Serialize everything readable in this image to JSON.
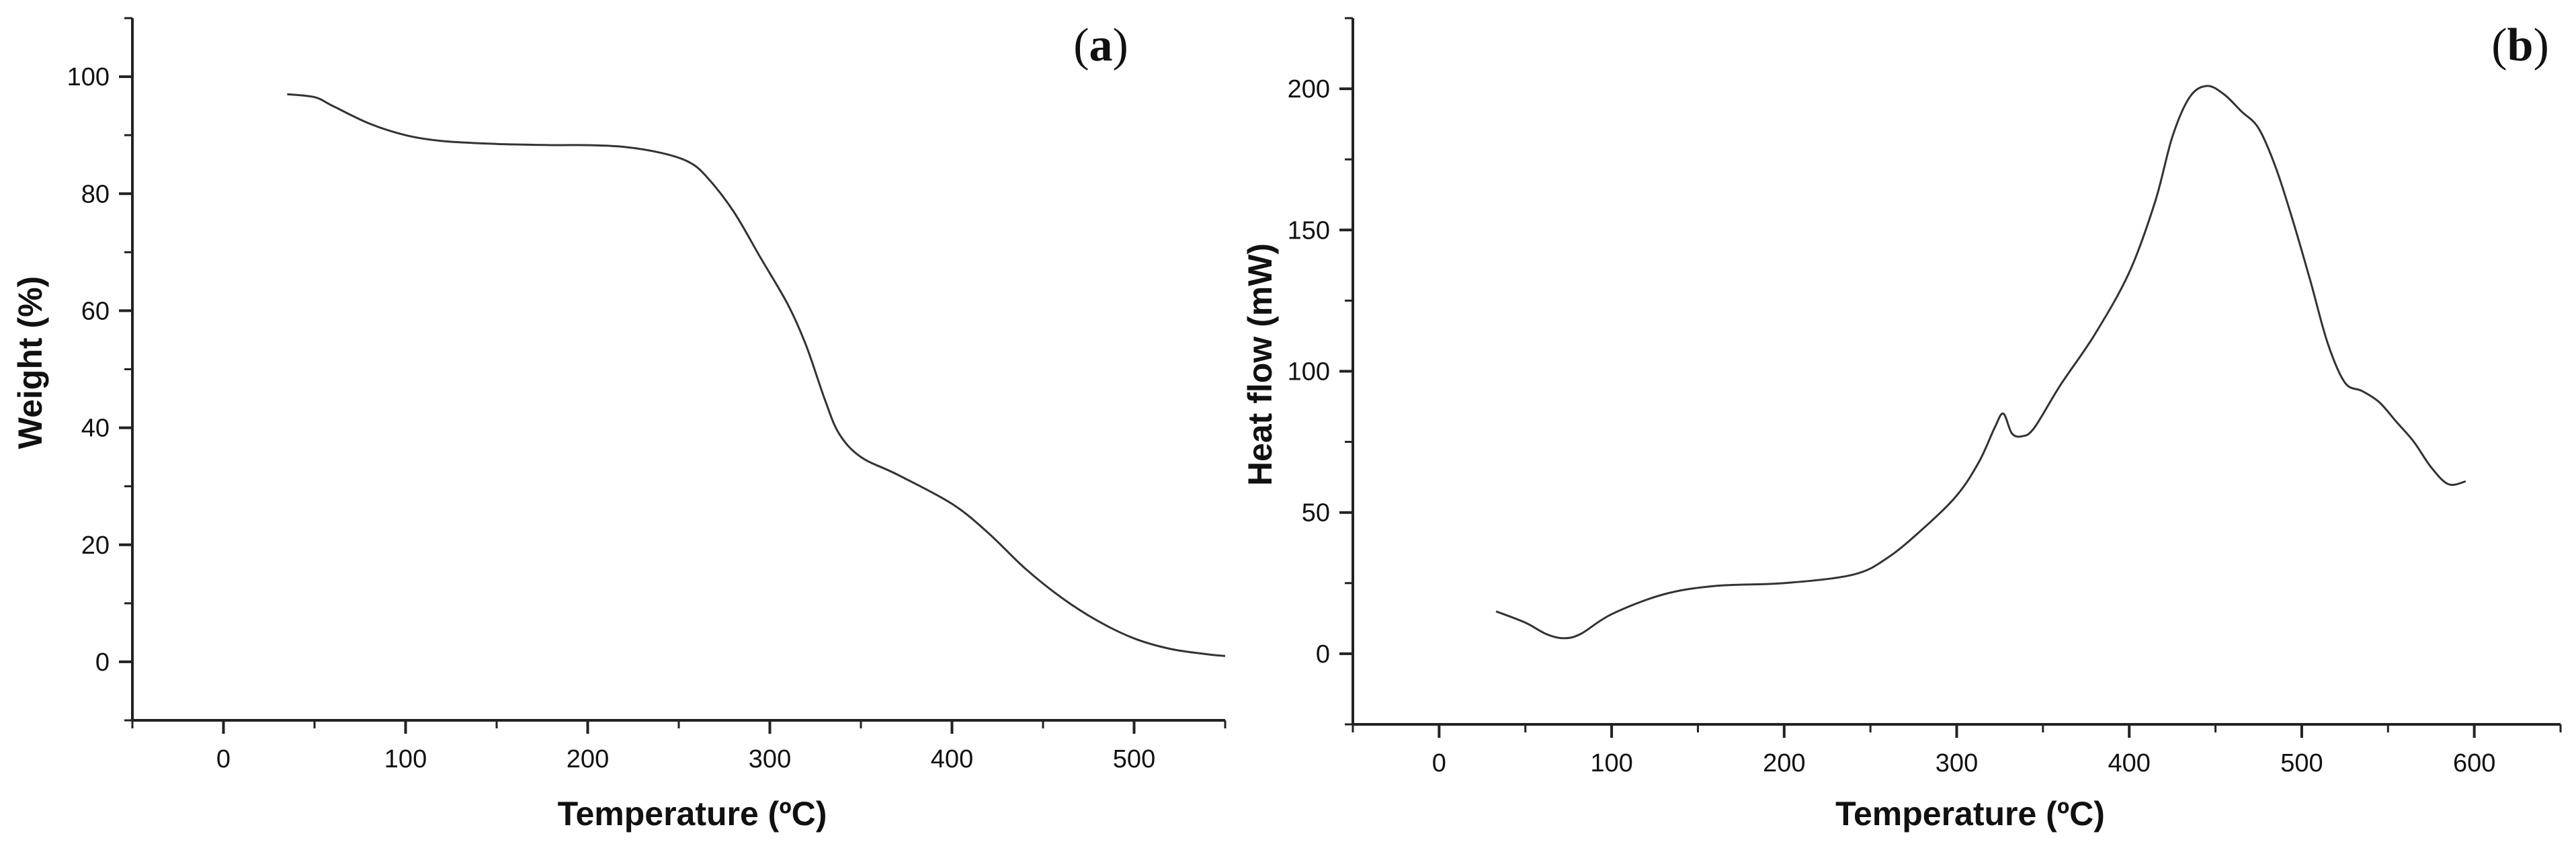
{
  "chart_data": [
    {
      "id": "a",
      "type": "line",
      "panel_label": "a",
      "xlabel": "Temperature (ºC)",
      "ylabel": "Weight (%)",
      "xlim": [
        -50,
        550
      ],
      "ylim": [
        -10,
        110
      ],
      "xticks": [
        0,
        100,
        200,
        300,
        400,
        500
      ],
      "yticks": [
        0,
        20,
        40,
        60,
        80,
        100
      ],
      "series": [
        {
          "name": "Weight",
          "x": [
            35,
            50,
            60,
            80,
            100,
            120,
            150,
            180,
            200,
            220,
            240,
            255,
            265,
            280,
            295,
            310,
            320,
            330,
            338,
            350,
            370,
            400,
            420,
            440,
            460,
            480,
            500,
            520,
            540,
            550
          ],
          "y": [
            97,
            96.5,
            95,
            92,
            90,
            89,
            88.5,
            88.3,
            88.3,
            88,
            87,
            85.5,
            83,
            77,
            69,
            61,
            54,
            45,
            39,
            35,
            32,
            27,
            22,
            16,
            11,
            7,
            4,
            2.2,
            1.3,
            1
          ]
        }
      ]
    },
    {
      "id": "b",
      "type": "line",
      "panel_label": "b",
      "xlabel": "Temperature (ºC)",
      "ylabel": "Heat flow (mW)",
      "xlim": [
        -50,
        650
      ],
      "ylim": [
        -25,
        225
      ],
      "xticks": [
        0,
        100,
        200,
        300,
        400,
        500,
        600
      ],
      "yticks": [
        0,
        50,
        100,
        150,
        200
      ],
      "series": [
        {
          "name": "Heat flow",
          "x": [
            33,
            50,
            62,
            72,
            82,
            100,
            130,
            160,
            200,
            240,
            260,
            280,
            300,
            313,
            322,
            327,
            332,
            338,
            345,
            360,
            380,
            400,
            415,
            425,
            435,
            445,
            455,
            465,
            475,
            485,
            495,
            505,
            515,
            525,
            535,
            545,
            555,
            565,
            575,
            585,
            595
          ],
          "y": [
            15,
            11,
            7,
            5.5,
            7,
            14,
            21,
            24,
            25,
            28,
            34,
            44,
            56,
            68,
            80,
            85,
            78,
            77,
            80,
            95,
            113,
            135,
            160,
            183,
            197,
            201,
            198,
            192,
            186,
            172,
            153,
            132,
            110,
            96,
            93,
            89,
            82,
            75,
            66,
            60,
            61
          ]
        }
      ]
    }
  ]
}
